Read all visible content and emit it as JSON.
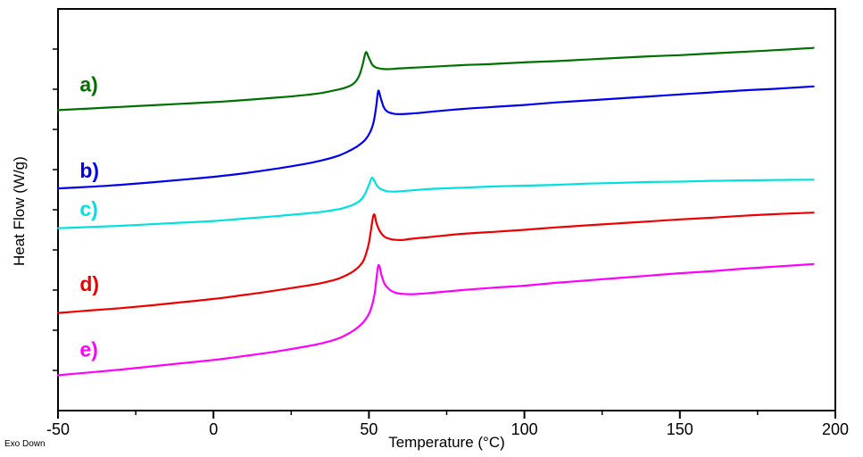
{
  "figure": {
    "background": "#ffffff",
    "frame_color": "#000000"
  },
  "chart_data": {
    "type": "line",
    "title": "",
    "xlabel": "Temperature (°C)",
    "ylabel": "Heat Flow (W/g)",
    "annotation": "Exo Down",
    "xlim": [
      -50,
      200
    ],
    "ylim": [
      0,
      10
    ],
    "x_ticks": [
      -50,
      0,
      50,
      100,
      150,
      200
    ],
    "x_minor_midpoints": true,
    "y_tick_step": 1,
    "grid": false,
    "legend_position": "inline-labels-left",
    "series": [
      {
        "name": "a",
        "label": "a)",
        "color": "#007000",
        "label_pos": [
          -43,
          7.95
        ],
        "peak_temp": 49,
        "points": [
          [
            -50,
            7.48
          ],
          [
            -40,
            7.52
          ],
          [
            -30,
            7.56
          ],
          [
            -20,
            7.6
          ],
          [
            -10,
            7.64
          ],
          [
            0,
            7.68
          ],
          [
            10,
            7.73
          ],
          [
            20,
            7.79
          ],
          [
            30,
            7.86
          ],
          [
            35,
            7.91
          ],
          [
            40,
            7.99
          ],
          [
            42,
            8.03
          ],
          [
            44,
            8.09
          ],
          [
            45,
            8.14
          ],
          [
            46,
            8.22
          ],
          [
            47,
            8.36
          ],
          [
            48,
            8.62
          ],
          [
            49,
            8.92
          ],
          [
            50,
            8.78
          ],
          [
            51,
            8.62
          ],
          [
            52,
            8.55
          ],
          [
            54,
            8.51
          ],
          [
            56,
            8.5
          ],
          [
            58,
            8.51
          ],
          [
            60,
            8.52
          ],
          [
            65,
            8.54
          ],
          [
            70,
            8.56
          ],
          [
            80,
            8.6
          ],
          [
            90,
            8.63
          ],
          [
            100,
            8.67
          ],
          [
            110,
            8.7
          ],
          [
            120,
            8.74
          ],
          [
            130,
            8.78
          ],
          [
            140,
            8.82
          ],
          [
            150,
            8.85
          ],
          [
            160,
            8.89
          ],
          [
            170,
            8.93
          ],
          [
            180,
            8.97
          ],
          [
            193,
            9.03
          ]
        ]
      },
      {
        "name": "b",
        "label": "b)",
        "color": "#0000EE",
        "label_pos": [
          -43,
          5.8
        ],
        "peak_temp": 53,
        "points": [
          [
            -50,
            5.53
          ],
          [
            -40,
            5.57
          ],
          [
            -30,
            5.62
          ],
          [
            -20,
            5.68
          ],
          [
            -10,
            5.75
          ],
          [
            0,
            5.82
          ],
          [
            10,
            5.91
          ],
          [
            20,
            6.02
          ],
          [
            30,
            6.15
          ],
          [
            35,
            6.23
          ],
          [
            40,
            6.34
          ],
          [
            43,
            6.44
          ],
          [
            45,
            6.52
          ],
          [
            47,
            6.62
          ],
          [
            49,
            6.76
          ],
          [
            50.5,
            6.95
          ],
          [
            51.5,
            7.18
          ],
          [
            52.3,
            7.55
          ],
          [
            53,
            7.96
          ],
          [
            53.8,
            7.78
          ],
          [
            54.8,
            7.55
          ],
          [
            56,
            7.44
          ],
          [
            58,
            7.39
          ],
          [
            60,
            7.38
          ],
          [
            63,
            7.39
          ],
          [
            66,
            7.41
          ],
          [
            70,
            7.44
          ],
          [
            80,
            7.51
          ],
          [
            90,
            7.56
          ],
          [
            100,
            7.61
          ],
          [
            110,
            7.67
          ],
          [
            120,
            7.72
          ],
          [
            130,
            7.77
          ],
          [
            140,
            7.82
          ],
          [
            150,
            7.87
          ],
          [
            160,
            7.92
          ],
          [
            170,
            7.97
          ],
          [
            180,
            8.01
          ],
          [
            193,
            8.07
          ]
        ]
      },
      {
        "name": "c",
        "label": "c)",
        "color": "#00E0E0",
        "label_pos": [
          -43,
          4.85
        ],
        "peak_temp": 51,
        "points": [
          [
            -50,
            4.54
          ],
          [
            -40,
            4.57
          ],
          [
            -30,
            4.6
          ],
          [
            -20,
            4.64
          ],
          [
            -10,
            4.68
          ],
          [
            0,
            4.72
          ],
          [
            10,
            4.78
          ],
          [
            20,
            4.84
          ],
          [
            30,
            4.91
          ],
          [
            35,
            4.95
          ],
          [
            40,
            5.01
          ],
          [
            43,
            5.07
          ],
          [
            45,
            5.13
          ],
          [
            47,
            5.22
          ],
          [
            48.5,
            5.36
          ],
          [
            50,
            5.62
          ],
          [
            51,
            5.8
          ],
          [
            52,
            5.68
          ],
          [
            53,
            5.56
          ],
          [
            54.5,
            5.49
          ],
          [
            56,
            5.46
          ],
          [
            58,
            5.45
          ],
          [
            60,
            5.46
          ],
          [
            65,
            5.49
          ],
          [
            70,
            5.52
          ],
          [
            80,
            5.55
          ],
          [
            90,
            5.58
          ],
          [
            100,
            5.6
          ],
          [
            110,
            5.62
          ],
          [
            120,
            5.65
          ],
          [
            130,
            5.67
          ],
          [
            140,
            5.69
          ],
          [
            150,
            5.7
          ],
          [
            160,
            5.72
          ],
          [
            170,
            5.73
          ],
          [
            180,
            5.74
          ],
          [
            193,
            5.75
          ]
        ]
      },
      {
        "name": "d",
        "label": "d)",
        "color": "#EE0000",
        "label_pos": [
          -43,
          2.98
        ],
        "peak_temp": 51.5,
        "points": [
          [
            -50,
            2.43
          ],
          [
            -40,
            2.49
          ],
          [
            -30,
            2.55
          ],
          [
            -20,
            2.62
          ],
          [
            -10,
            2.7
          ],
          [
            0,
            2.78
          ],
          [
            10,
            2.88
          ],
          [
            20,
            2.99
          ],
          [
            30,
            3.11
          ],
          [
            35,
            3.18
          ],
          [
            40,
            3.28
          ],
          [
            43,
            3.38
          ],
          [
            45,
            3.47
          ],
          [
            47,
            3.6
          ],
          [
            48.5,
            3.78
          ],
          [
            50,
            4.18
          ],
          [
            51.5,
            4.87
          ],
          [
            52.5,
            4.65
          ],
          [
            53.5,
            4.47
          ],
          [
            55,
            4.33
          ],
          [
            57,
            4.27
          ],
          [
            59,
            4.25
          ],
          [
            61,
            4.25
          ],
          [
            64,
            4.28
          ],
          [
            68,
            4.31
          ],
          [
            72,
            4.34
          ],
          [
            80,
            4.4
          ],
          [
            90,
            4.45
          ],
          [
            100,
            4.5
          ],
          [
            110,
            4.56
          ],
          [
            120,
            4.61
          ],
          [
            130,
            4.66
          ],
          [
            140,
            4.71
          ],
          [
            150,
            4.76
          ],
          [
            160,
            4.8
          ],
          [
            170,
            4.85
          ],
          [
            180,
            4.89
          ],
          [
            193,
            4.93
          ]
        ]
      },
      {
        "name": "e",
        "label": "e)",
        "color": "#FF00FF",
        "label_pos": [
          -43,
          1.35
        ],
        "peak_temp": 53,
        "points": [
          [
            -50,
            0.88
          ],
          [
            -40,
            0.95
          ],
          [
            -30,
            1.02
          ],
          [
            -20,
            1.1
          ],
          [
            -10,
            1.18
          ],
          [
            0,
            1.26
          ],
          [
            10,
            1.36
          ],
          [
            20,
            1.47
          ],
          [
            30,
            1.6
          ],
          [
            35,
            1.68
          ],
          [
            40,
            1.79
          ],
          [
            43,
            1.9
          ],
          [
            45,
            1.99
          ],
          [
            47,
            2.11
          ],
          [
            49,
            2.28
          ],
          [
            50.5,
            2.5
          ],
          [
            51.8,
            2.9
          ],
          [
            53,
            3.61
          ],
          [
            54,
            3.38
          ],
          [
            55,
            3.16
          ],
          [
            56.5,
            3.02
          ],
          [
            58,
            2.95
          ],
          [
            60,
            2.91
          ],
          [
            62,
            2.9
          ],
          [
            65,
            2.9
          ],
          [
            70,
            2.93
          ],
          [
            80,
            3.0
          ],
          [
            90,
            3.06
          ],
          [
            100,
            3.11
          ],
          [
            110,
            3.18
          ],
          [
            120,
            3.24
          ],
          [
            130,
            3.3
          ],
          [
            140,
            3.36
          ],
          [
            150,
            3.42
          ],
          [
            160,
            3.47
          ],
          [
            170,
            3.53
          ],
          [
            180,
            3.58
          ],
          [
            193,
            3.65
          ]
        ]
      }
    ]
  }
}
